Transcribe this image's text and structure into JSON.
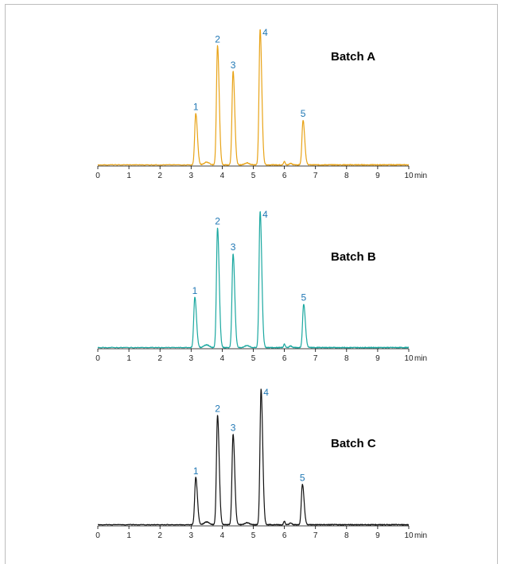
{
  "chart_data": [
    {
      "type": "line",
      "title": "Batch A",
      "xlabel": "min",
      "xlim": [
        0,
        10
      ],
      "x_ticks": [
        "0",
        "1",
        "2",
        "3",
        "4",
        "5",
        "6",
        "7",
        "8",
        "9",
        "10"
      ],
      "color": "#E8A317",
      "peak_label_color": "#1F77B4",
      "baseline": 0.0,
      "peaks": [
        {
          "label": "1",
          "x": 3.15,
          "height": 0.38
        },
        {
          "label": "2",
          "x": 3.85,
          "height": 0.88
        },
        {
          "label": "3",
          "x": 4.35,
          "height": 0.69
        },
        {
          "label": "4",
          "x": 5.22,
          "height": 1.0
        },
        {
          "label": "5",
          "x": 6.6,
          "height": 0.33
        }
      ]
    },
    {
      "type": "line",
      "title": "Batch B",
      "xlabel": "min",
      "xlim": [
        0,
        10
      ],
      "x_ticks": [
        "0",
        "1",
        "2",
        "3",
        "4",
        "5",
        "6",
        "7",
        "8",
        "9",
        "10"
      ],
      "color": "#1BA8A0",
      "peak_label_color": "#1F77B4",
      "baseline": 0.0,
      "peaks": [
        {
          "label": "1",
          "x": 3.12,
          "height": 0.37
        },
        {
          "label": "2",
          "x": 3.85,
          "height": 0.88
        },
        {
          "label": "3",
          "x": 4.35,
          "height": 0.69
        },
        {
          "label": "4",
          "x": 5.22,
          "height": 1.0
        },
        {
          "label": "5",
          "x": 6.62,
          "height": 0.32
        }
      ]
    },
    {
      "type": "line",
      "title": "Batch C",
      "xlabel": "min",
      "xlim": [
        0,
        10
      ],
      "x_ticks": [
        "0",
        "1",
        "2",
        "3",
        "4",
        "5",
        "6",
        "7",
        "8",
        "9",
        "10"
      ],
      "color": "#111111",
      "peak_label_color": "#1F77B4",
      "baseline": 0.0,
      "peaks": [
        {
          "label": "1",
          "x": 3.15,
          "height": 0.35
        },
        {
          "label": "2",
          "x": 3.85,
          "height": 0.81
        },
        {
          "label": "3",
          "x": 4.35,
          "height": 0.67
        },
        {
          "label": "4",
          "x": 5.25,
          "height": 1.0
        },
        {
          "label": "5",
          "x": 6.58,
          "height": 0.3
        }
      ]
    }
  ]
}
